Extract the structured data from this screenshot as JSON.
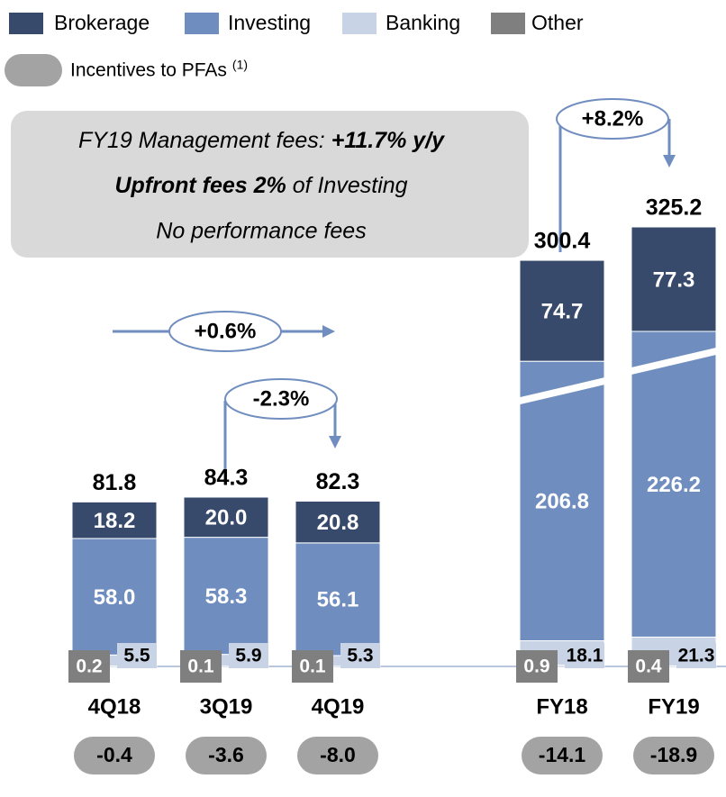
{
  "chart_data": {
    "type": "bar",
    "stacked": true,
    "categories": [
      "4Q18",
      "3Q19",
      "4Q19",
      "FY18",
      "FY19"
    ],
    "series": [
      {
        "name": "Other",
        "color": "#7f7f7f",
        "values": [
          0.2,
          0.1,
          0.1,
          0.9,
          0.4
        ]
      },
      {
        "name": "Banking",
        "color": "#c9d3e6",
        "values": [
          5.5,
          5.9,
          5.3,
          18.1,
          21.3
        ]
      },
      {
        "name": "Investing",
        "color": "#6f8ebf",
        "values": [
          58.0,
          58.3,
          56.1,
          206.8,
          226.2
        ],
        "value_labels": [
          "58.0",
          "58.3",
          "56.1",
          "206.8",
          "226.2"
        ]
      },
      {
        "name": "Brokerage",
        "color": "#374a6b",
        "values": [
          18.2,
          20.0,
          20.8,
          74.7,
          77.3
        ],
        "value_labels": [
          "18.2",
          "20.0",
          "20.8",
          "74.7",
          "77.3"
        ]
      }
    ],
    "totals": [
      81.8,
      84.3,
      82.3,
      300.4,
      325.2
    ],
    "incentives": {
      "name": "Incentives to PFAs",
      "footnote_ref": "(1)",
      "color": "#a3a3a3",
      "values": [
        -0.4,
        -3.6,
        -8.0,
        -14.1,
        -18.9
      ],
      "value_labels": [
        "-0.4",
        "-3.6",
        "-8.0",
        "-14.1",
        "-18.9"
      ]
    },
    "annotations": [
      "+0.6%",
      "-2.3%",
      "+8.2%"
    ],
    "textbox": {
      "line1": {
        "italic": "FY19 Management fees: ",
        "bold": "+11.7% y/y"
      },
      "line2": {
        "bold": "Upfront fees 2%",
        "italic": " of Investing"
      },
      "line3": "No performance fees"
    }
  }
}
